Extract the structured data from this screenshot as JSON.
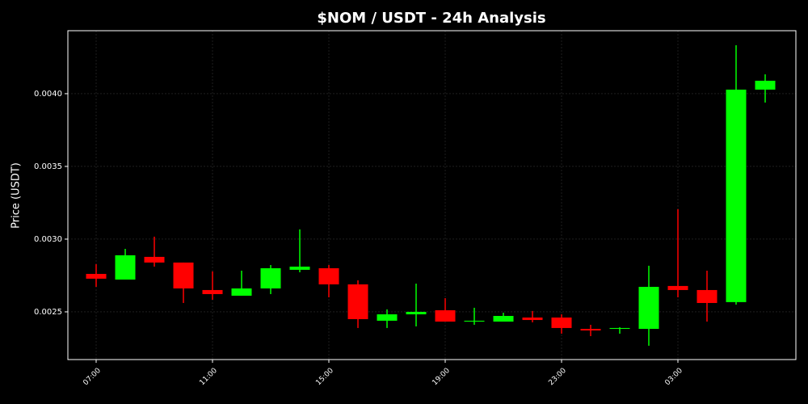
{
  "chart_data": {
    "type": "candlestick",
    "title": "$NOM / USDT - 24h Analysis",
    "y_label": "Price (USDT)",
    "categories": [
      "07:00",
      null,
      null,
      null,
      "11:00",
      null,
      null,
      null,
      "15:00",
      null,
      null,
      null,
      "19:00",
      null,
      null,
      null,
      "23:00",
      null,
      null,
      null,
      "03:00",
      null,
      null,
      null
    ],
    "open": [
      0.002761,
      0.002722,
      0.002878,
      0.002839,
      0.00265,
      0.002611,
      0.002661,
      0.002789,
      0.0028,
      0.002689,
      0.002439,
      0.002483,
      0.002511,
      0.002433,
      0.002433,
      0.002461,
      0.002461,
      0.002383,
      0.002383,
      0.002383,
      0.002678,
      0.00265,
      0.002567,
      0.004028
    ],
    "high": [
      0.002828,
      0.002933,
      0.003017,
      0.002839,
      0.002778,
      0.002783,
      0.002822,
      0.003067,
      0.002822,
      0.002717,
      0.002517,
      0.002694,
      0.002594,
      0.002528,
      0.002494,
      0.002506,
      0.002483,
      0.002411,
      0.002394,
      0.002817,
      0.003206,
      0.002783,
      0.004333,
      0.004133
    ],
    "low": [
      0.002672,
      0.002722,
      0.002811,
      0.002561,
      0.002583,
      0.002611,
      0.002622,
      0.002772,
      0.0026,
      0.002389,
      0.002389,
      0.0024,
      0.002433,
      0.002411,
      0.002433,
      0.002428,
      0.00235,
      0.002333,
      0.00235,
      0.002267,
      0.0026,
      0.002433,
      0.00255,
      0.003939
    ],
    "close": [
      0.002728,
      0.002889,
      0.002839,
      0.002661,
      0.002622,
      0.002661,
      0.0028,
      0.002811,
      0.002689,
      0.00245,
      0.002483,
      0.0025,
      0.002433,
      0.002439,
      0.002472,
      0.002444,
      0.002389,
      0.002372,
      0.002389,
      0.002672,
      0.00265,
      0.002561,
      0.004028,
      0.004089
    ],
    "up_color": "#00ff00",
    "down_color": "#ff0000",
    "ylim": [
      0.002172,
      0.004433
    ],
    "yticks": [
      0.0025,
      {
        "value": 0.003,
        "label": "0.0030"
      },
      {
        "value": 0.0035,
        "label": "0.0035"
      },
      {
        "value": 0.004,
        "label": "0.0040"
      }
    ],
    "grid": true
  }
}
